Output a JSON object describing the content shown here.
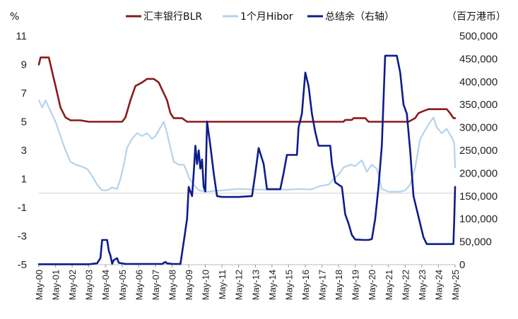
{
  "chart_data": {
    "type": "line",
    "left_unit": "%",
    "right_unit": "（百万港币）",
    "left_axis": {
      "min": -5,
      "max": 11,
      "ticks": [
        11,
        9,
        7,
        5,
        3,
        1,
        -1,
        -3,
        -5
      ]
    },
    "right_axis": {
      "min": 0,
      "max": 500000,
      "ticks": [
        500000,
        450000,
        400000,
        350000,
        300000,
        250000,
        200000,
        150000,
        100000,
        50000,
        0
      ],
      "tick_labels": [
        "500,000",
        "450,000",
        "400,000",
        "350,000",
        "300,000",
        "250,000",
        "200,000",
        "150,000",
        "100,000",
        "50,000",
        "0"
      ]
    },
    "x_labels": [
      "May-00",
      "May-01",
      "May-02",
      "May-03",
      "May-04",
      "May-05",
      "May-06",
      "May-07",
      "May-08",
      "May-09",
      "May-10",
      "May-11",
      "May-12",
      "May-13",
      "May-14",
      "May-15",
      "May-16",
      "May-17",
      "May-18",
      "May-19",
      "May-20",
      "May-21",
      "May-22",
      "May-23",
      "May-24",
      "May-25"
    ],
    "x_range": [
      2000.0,
      2025.0
    ],
    "grid": false,
    "legend_position": "top",
    "series": [
      {
        "name": "汇丰银行BLR",
        "axis": "left",
        "color": "#8b1a1a",
        "points": [
          [
            2000.0,
            9.0
          ],
          [
            2000.1,
            9.5
          ],
          [
            2000.6,
            9.5
          ],
          [
            2000.8,
            8.5
          ],
          [
            2001.0,
            7.5
          ],
          [
            2001.3,
            6.0
          ],
          [
            2001.6,
            5.3
          ],
          [
            2001.9,
            5.1
          ],
          [
            2002.5,
            5.1
          ],
          [
            2003.0,
            5.0
          ],
          [
            2005.0,
            5.0
          ],
          [
            2005.2,
            5.3
          ],
          [
            2005.5,
            6.5
          ],
          [
            2005.8,
            7.5
          ],
          [
            2006.2,
            7.75
          ],
          [
            2006.5,
            8.0
          ],
          [
            2006.9,
            8.0
          ],
          [
            2007.2,
            7.75
          ],
          [
            2007.5,
            7.0
          ],
          [
            2007.7,
            6.5
          ],
          [
            2007.9,
            5.6
          ],
          [
            2008.1,
            5.25
          ],
          [
            2008.6,
            5.25
          ],
          [
            2008.9,
            5.0
          ],
          [
            2018.3,
            5.0
          ],
          [
            2018.4,
            5.13
          ],
          [
            2018.8,
            5.13
          ],
          [
            2018.9,
            5.25
          ],
          [
            2019.6,
            5.25
          ],
          [
            2019.8,
            5.0
          ],
          [
            2022.2,
            5.0
          ],
          [
            2022.6,
            5.25
          ],
          [
            2022.8,
            5.6
          ],
          [
            2023.1,
            5.75
          ],
          [
            2023.4,
            5.88
          ],
          [
            2024.5,
            5.88
          ],
          [
            2024.7,
            5.6
          ],
          [
            2024.9,
            5.25
          ],
          [
            2025.0,
            5.25
          ]
        ]
      },
      {
        "name": "1个月Hibor",
        "axis": "left",
        "color": "#b4d3ec",
        "points": [
          [
            2000.0,
            6.5
          ],
          [
            2000.2,
            6.0
          ],
          [
            2000.4,
            6.5
          ],
          [
            2000.6,
            6.0
          ],
          [
            2000.8,
            5.5
          ],
          [
            2001.0,
            5.0
          ],
          [
            2001.3,
            4.0
          ],
          [
            2001.6,
            3.0
          ],
          [
            2001.9,
            2.2
          ],
          [
            2002.2,
            2.0
          ],
          [
            2002.5,
            1.9
          ],
          [
            2002.9,
            1.7
          ],
          [
            2003.2,
            1.2
          ],
          [
            2003.5,
            0.6
          ],
          [
            2003.8,
            0.2
          ],
          [
            2004.1,
            0.2
          ],
          [
            2004.4,
            0.4
          ],
          [
            2004.7,
            0.3
          ],
          [
            2004.9,
            1.0
          ],
          [
            2005.1,
            2.0
          ],
          [
            2005.3,
            3.2
          ],
          [
            2005.6,
            3.8
          ],
          [
            2005.9,
            4.2
          ],
          [
            2006.2,
            4.0
          ],
          [
            2006.5,
            4.2
          ],
          [
            2006.8,
            3.8
          ],
          [
            2007.0,
            4.0
          ],
          [
            2007.2,
            4.4
          ],
          [
            2007.5,
            5.0
          ],
          [
            2007.7,
            4.2
          ],
          [
            2007.9,
            3.2
          ],
          [
            2008.1,
            2.2
          ],
          [
            2008.4,
            2.0
          ],
          [
            2008.7,
            2.0
          ],
          [
            2008.9,
            1.5
          ],
          [
            2009.0,
            1.1
          ],
          [
            2009.3,
            0.6
          ],
          [
            2009.6,
            0.2
          ],
          [
            2010.0,
            0.1
          ],
          [
            2011.0,
            0.2
          ],
          [
            2012.0,
            0.3
          ],
          [
            2013.0,
            0.25
          ],
          [
            2014.0,
            0.25
          ],
          [
            2015.0,
            0.25
          ],
          [
            2015.8,
            0.3
          ],
          [
            2016.3,
            0.25
          ],
          [
            2016.9,
            0.5
          ],
          [
            2017.4,
            0.6
          ],
          [
            2017.7,
            1.0
          ],
          [
            2018.0,
            1.3
          ],
          [
            2018.3,
            1.8
          ],
          [
            2018.7,
            2.0
          ],
          [
            2019.0,
            1.9
          ],
          [
            2019.4,
            2.3
          ],
          [
            2019.7,
            1.5
          ],
          [
            2020.0,
            2.0
          ],
          [
            2020.3,
            1.7
          ],
          [
            2020.6,
            0.3
          ],
          [
            2021.0,
            0.1
          ],
          [
            2021.7,
            0.1
          ],
          [
            2022.0,
            0.2
          ],
          [
            2022.3,
            0.6
          ],
          [
            2022.6,
            1.8
          ],
          [
            2022.9,
            3.8
          ],
          [
            2023.1,
            4.2
          ],
          [
            2023.4,
            4.8
          ],
          [
            2023.7,
            5.3
          ],
          [
            2023.9,
            4.6
          ],
          [
            2024.2,
            4.2
          ],
          [
            2024.5,
            4.5
          ],
          [
            2024.8,
            3.9
          ],
          [
            2024.95,
            3.5
          ],
          [
            2025.0,
            1.8
          ]
        ]
      },
      {
        "name": "总结余（右轴）",
        "axis": "right",
        "color": "#0d1c8c",
        "points": [
          [
            2000.0,
            1000
          ],
          [
            2003.0,
            1000
          ],
          [
            2003.5,
            3000
          ],
          [
            2003.7,
            15000
          ],
          [
            2003.8,
            54000
          ],
          [
            2004.1,
            54000
          ],
          [
            2004.2,
            30000
          ],
          [
            2004.3,
            20000
          ],
          [
            2004.4,
            2000
          ],
          [
            2004.5,
            10000
          ],
          [
            2004.7,
            14000
          ],
          [
            2004.8,
            4000
          ],
          [
            2005.2,
            1500
          ],
          [
            2007.4,
            1500
          ],
          [
            2007.6,
            6000
          ],
          [
            2007.7,
            3000
          ],
          [
            2008.0,
            1500
          ],
          [
            2008.5,
            1500
          ],
          [
            2008.7,
            50000
          ],
          [
            2008.9,
            100000
          ],
          [
            2009.0,
            170000
          ],
          [
            2009.1,
            160000
          ],
          [
            2009.2,
            150000
          ],
          [
            2009.3,
            200000
          ],
          [
            2009.4,
            260000
          ],
          [
            2009.5,
            220000
          ],
          [
            2009.6,
            250000
          ],
          [
            2009.7,
            210000
          ],
          [
            2009.8,
            230000
          ],
          [
            2009.9,
            170000
          ],
          [
            2010.0,
            160000
          ],
          [
            2010.1,
            313000
          ],
          [
            2010.3,
            260000
          ],
          [
            2010.5,
            200000
          ],
          [
            2010.7,
            150000
          ],
          [
            2011.0,
            148000
          ],
          [
            2012.0,
            148000
          ],
          [
            2012.8,
            150000
          ],
          [
            2013.0,
            200000
          ],
          [
            2013.2,
            255000
          ],
          [
            2013.5,
            220000
          ],
          [
            2013.7,
            165000
          ],
          [
            2014.5,
            165000
          ],
          [
            2014.7,
            200000
          ],
          [
            2014.9,
            240000
          ],
          [
            2015.5,
            240000
          ],
          [
            2015.6,
            300000
          ],
          [
            2015.8,
            330000
          ],
          [
            2016.0,
            420000
          ],
          [
            2016.2,
            390000
          ],
          [
            2016.4,
            330000
          ],
          [
            2016.6,
            290000
          ],
          [
            2016.8,
            260000
          ],
          [
            2017.5,
            260000
          ],
          [
            2017.6,
            220000
          ],
          [
            2017.8,
            180000
          ],
          [
            2018.2,
            170000
          ],
          [
            2018.4,
            110000
          ],
          [
            2018.6,
            90000
          ],
          [
            2018.8,
            65000
          ],
          [
            2019.0,
            55000
          ],
          [
            2019.5,
            54000
          ],
          [
            2019.8,
            54000
          ],
          [
            2020.0,
            56000
          ],
          [
            2020.2,
            100000
          ],
          [
            2020.4,
            170000
          ],
          [
            2020.6,
            260000
          ],
          [
            2020.8,
            457000
          ],
          [
            2021.5,
            457000
          ],
          [
            2021.7,
            420000
          ],
          [
            2021.9,
            350000
          ],
          [
            2022.1,
            330000
          ],
          [
            2022.3,
            250000
          ],
          [
            2022.5,
            150000
          ],
          [
            2022.7,
            120000
          ],
          [
            2022.9,
            90000
          ],
          [
            2023.1,
            60000
          ],
          [
            2023.3,
            45000
          ],
          [
            2024.9,
            45000
          ],
          [
            2024.95,
            100000
          ],
          [
            2025.0,
            170000
          ]
        ]
      }
    ]
  }
}
